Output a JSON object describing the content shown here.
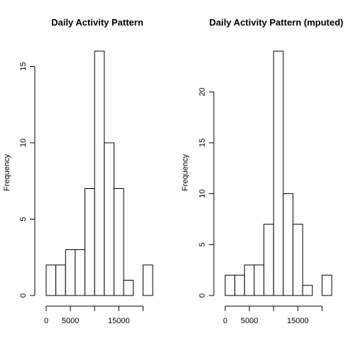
{
  "chart_data": [
    {
      "type": "bar",
      "title": "Daily Activity Pattern",
      "xlabel": "",
      "ylabel": "Frequency",
      "bin_edges": [
        0,
        2000,
        4000,
        6000,
        8000,
        10000,
        12000,
        14000,
        16000,
        18000,
        20000,
        22000
      ],
      "values": [
        2,
        2,
        3,
        3,
        7,
        16,
        10,
        7,
        1,
        0,
        2
      ],
      "xticks": [
        0,
        5000,
        15000
      ],
      "xtick_marks": [
        0,
        5000,
        10000,
        15000,
        20000
      ],
      "yticks": [
        0,
        5,
        10,
        15
      ],
      "xlim": [
        0,
        22000
      ],
      "ylim": [
        0,
        16
      ],
      "grid": false
    },
    {
      "type": "bar",
      "title": "Daily Activity Pattern (mputed)",
      "xlabel": "",
      "ylabel": "Frequency",
      "bin_edges": [
        0,
        2000,
        4000,
        6000,
        8000,
        10000,
        12000,
        14000,
        16000,
        18000,
        20000,
        22000
      ],
      "values": [
        2,
        2,
        3,
        3,
        7,
        24,
        10,
        7,
        1,
        0,
        2
      ],
      "xticks": [
        0,
        5000,
        15000
      ],
      "xtick_marks": [
        0,
        5000,
        10000,
        15000,
        20000
      ],
      "yticks": [
        0,
        5,
        10,
        15,
        20
      ],
      "xlim": [
        0,
        22000
      ],
      "ylim": [
        0,
        24
      ],
      "grid": false
    }
  ]
}
